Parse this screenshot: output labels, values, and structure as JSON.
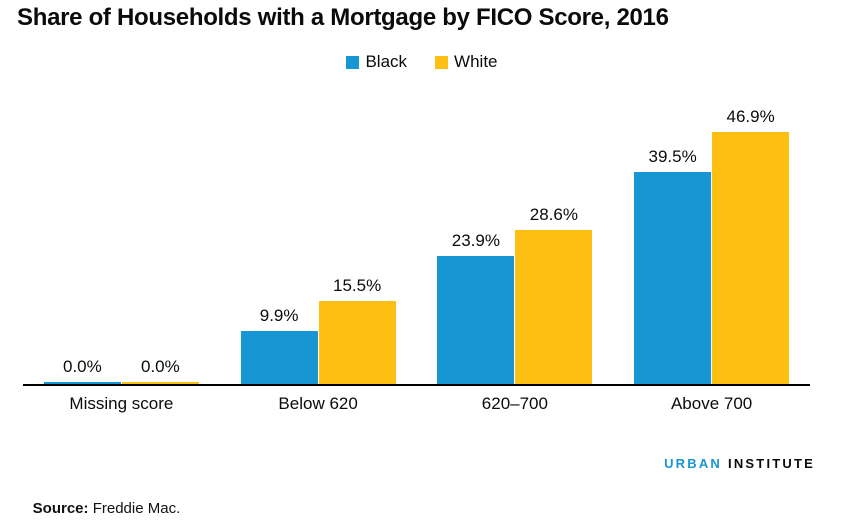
{
  "title": "Share of Households with a Mortgage by FICO Score, 2016",
  "chart_data": {
    "type": "bar",
    "title": "Share of Households with a Mortgage by FICO Score, 2016",
    "categories": [
      "Missing score",
      "Below 620",
      "620–700",
      "Above 700"
    ],
    "series": [
      {
        "name": "Black",
        "color": "#1696d2",
        "values": [
          0.0,
          9.9,
          23.9,
          39.5
        ]
      },
      {
        "name": "White",
        "color": "#fdbf11",
        "values": [
          0.0,
          15.5,
          28.6,
          46.9
        ]
      }
    ],
    "value_label_format": "percent-one-decimal",
    "xlabel": "",
    "ylabel": "",
    "ylim": [
      0,
      50
    ],
    "grid": false,
    "axis_line_color": "#000000",
    "legend_position": "top-center"
  },
  "footer": {
    "source_label": "Source:",
    "source_text": " Freddie Mac."
  },
  "logo": {
    "part1": "URBAN",
    "part2": "INSTITUTE",
    "color1": "#1696d2",
    "color2": "#0b0b0b"
  }
}
